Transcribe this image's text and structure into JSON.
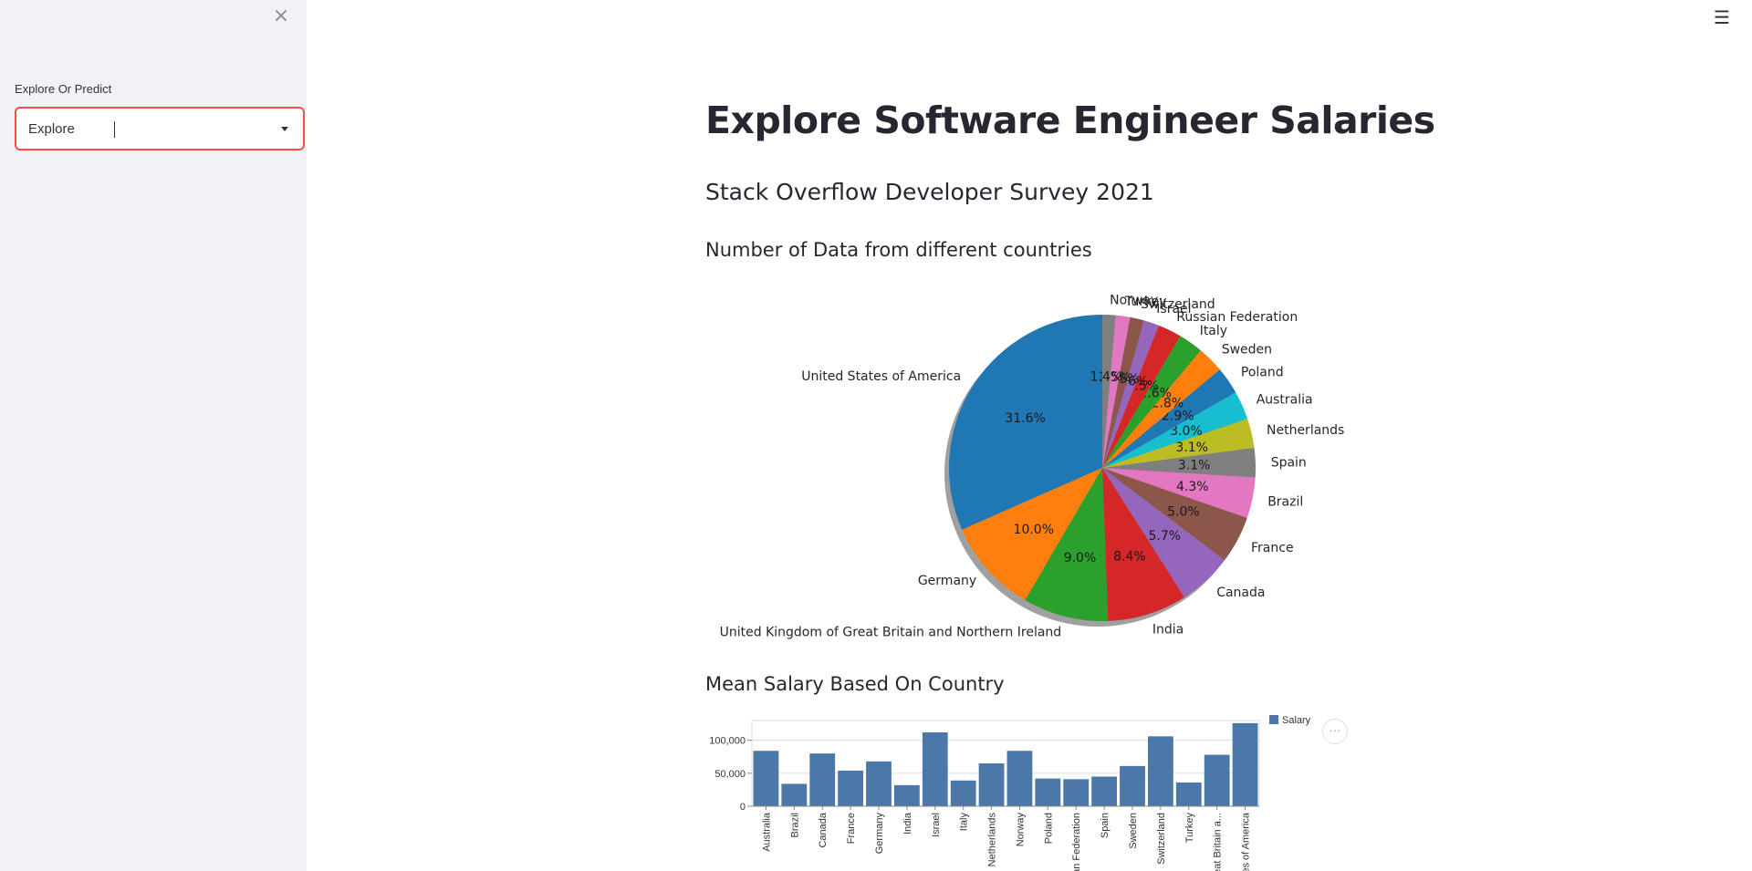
{
  "sidebar": {
    "close_icon": "close-icon",
    "select_label": "Explore Or Predict",
    "select_value": "Explore"
  },
  "header": {
    "menu_icon": "hamburger-menu-icon",
    "menu_glyph": "☰",
    "close_glyph": "×"
  },
  "main": {
    "title": "Explore Software Engineer Salaries",
    "subtitle": "Stack Overflow Developer Survey 2021",
    "pie_heading": "Number of Data from different countries",
    "bar_heading": "Mean Salary Based On Country",
    "bar_actions_glyph": "···"
  },
  "chart_data": [
    {
      "type": "pie",
      "shadow": true,
      "start_angle": 90,
      "slices": [
        {
          "label": "United States of America",
          "value": 31.6,
          "pct": "31.6%",
          "color": "#1f77b4"
        },
        {
          "label": "Germany",
          "value": 10.0,
          "pct": "10.0%",
          "color": "#ff7f0e"
        },
        {
          "label": "United Kingdom of Great Britain and Northern Ireland",
          "value": 9.0,
          "pct": "9.0%",
          "color": "#2ca02c"
        },
        {
          "label": "India",
          "value": 8.4,
          "pct": "8.4%",
          "color": "#d62728"
        },
        {
          "label": "Canada",
          "value": 5.7,
          "pct": "5.7%",
          "color": "#9467bd"
        },
        {
          "label": "France",
          "value": 5.0,
          "pct": "5.0%",
          "color": "#8c564b"
        },
        {
          "label": "Brazil",
          "value": 4.3,
          "pct": "4.3%",
          "color": "#e377c2"
        },
        {
          "label": "Spain",
          "value": 3.1,
          "pct": "3.1%",
          "color": "#7f7f7f"
        },
        {
          "label": "Netherlands",
          "value": 3.1,
          "pct": "3.1%",
          "color": "#bcbd22"
        },
        {
          "label": "Australia",
          "value": 3.0,
          "pct": "3.0%",
          "color": "#17becf"
        },
        {
          "label": "Poland",
          "value": 2.9,
          "pct": "2.9%",
          "color": "#1f77b4"
        },
        {
          "label": "Sweden",
          "value": 2.8,
          "pct": "2.8%",
          "color": "#ff7f0e"
        },
        {
          "label": "Italy",
          "value": 2.6,
          "pct": "2.6%",
          "color": "#2ca02c"
        },
        {
          "label": "Russian Federation",
          "value": 2.5,
          "pct": "2.5%",
          "color": "#d62728"
        },
        {
          "label": "Israel",
          "value": 1.6,
          "pct": "1.6%",
          "color": "#9467bd"
        },
        {
          "label": "Switzerland",
          "value": 1.5,
          "pct": "1.5%",
          "color": "#8c564b"
        },
        {
          "label": "Turkey",
          "value": 1.5,
          "pct": "1.5%",
          "color": "#e377c2"
        },
        {
          "label": "Norway",
          "value": 1.4,
          "pct": "1.4%",
          "color": "#7f7f7f"
        }
      ]
    },
    {
      "type": "bar",
      "categories": [
        "Australia",
        "Brazil",
        "Canada",
        "France",
        "Germany",
        "India",
        "Israel",
        "Italy",
        "Netherlands",
        "Norway",
        "Poland",
        "Russian Federation",
        "Spain",
        "Sweden",
        "Switzerland",
        "Turkey",
        "United Kingdom of Great Britain and Northern Ireland",
        "United States of America"
      ],
      "tick_labels": [
        "Australia",
        "Brazil",
        "Canada",
        "France",
        "Germany",
        "India",
        "Israel",
        "Italy",
        "Netherlands",
        "Norway",
        "Poland",
        "ian Federation",
        "Spain",
        "Sweden",
        "Switzerland",
        "Turkey",
        "eat Britain a...",
        "tes of America"
      ],
      "series": [
        {
          "name": "Salary",
          "color": "#4c78a8",
          "values": [
            84000,
            34000,
            80000,
            54000,
            68000,
            32000,
            112000,
            39000,
            65000,
            84000,
            42000,
            41000,
            45000,
            61000,
            106000,
            36000,
            78000,
            126000
          ]
        }
      ],
      "ylim": [
        0,
        130000
      ],
      "yticks": [
        0,
        50000,
        100000
      ],
      "ytick_labels": [
        "0",
        "50,000",
        "100,000"
      ],
      "legend": "top-right",
      "grid": true
    }
  ]
}
